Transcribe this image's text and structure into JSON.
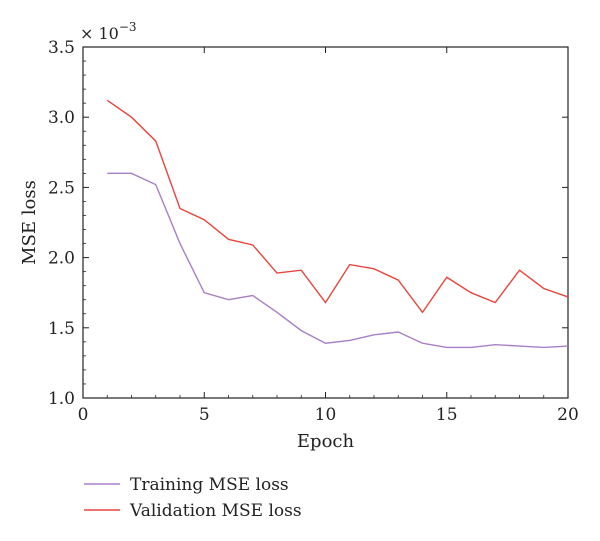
{
  "chart_data": {
    "type": "line",
    "xlabel": "Epoch",
    "ylabel": "MSE loss",
    "y_scale_label": "× 10",
    "y_scale_exponent": "−3",
    "xlim": [
      0,
      20
    ],
    "ylim": [
      1.0,
      3.5
    ],
    "x_ticks": [
      "0",
      "5",
      "10",
      "15",
      "20"
    ],
    "y_ticks": [
      "1.0",
      "1.5",
      "2.0",
      "2.5",
      "3.0",
      "3.5"
    ],
    "x": [
      1,
      2,
      3,
      4,
      5,
      6,
      7,
      8,
      9,
      10,
      11,
      12,
      13,
      14,
      15,
      16,
      17,
      18,
      19,
      20
    ],
    "series": [
      {
        "name": "Training MSE loss",
        "color": "#a97fc8",
        "values": [
          2.6,
          2.6,
          2.52,
          2.1,
          1.75,
          1.7,
          1.73,
          1.61,
          1.48,
          1.39,
          1.41,
          1.45,
          1.47,
          1.39,
          1.36,
          1.36,
          1.38,
          1.37,
          1.36,
          1.37
        ]
      },
      {
        "name": "Validation MSE loss",
        "color": "#e8453c",
        "values": [
          3.12,
          3.0,
          2.83,
          2.35,
          2.27,
          2.13,
          2.09,
          1.89,
          1.91,
          1.68,
          1.95,
          1.92,
          1.84,
          1.61,
          1.86,
          1.75,
          1.68,
          1.91,
          1.78,
          1.72
        ]
      }
    ],
    "legend_position": "bottom-left",
    "grid": false
  }
}
